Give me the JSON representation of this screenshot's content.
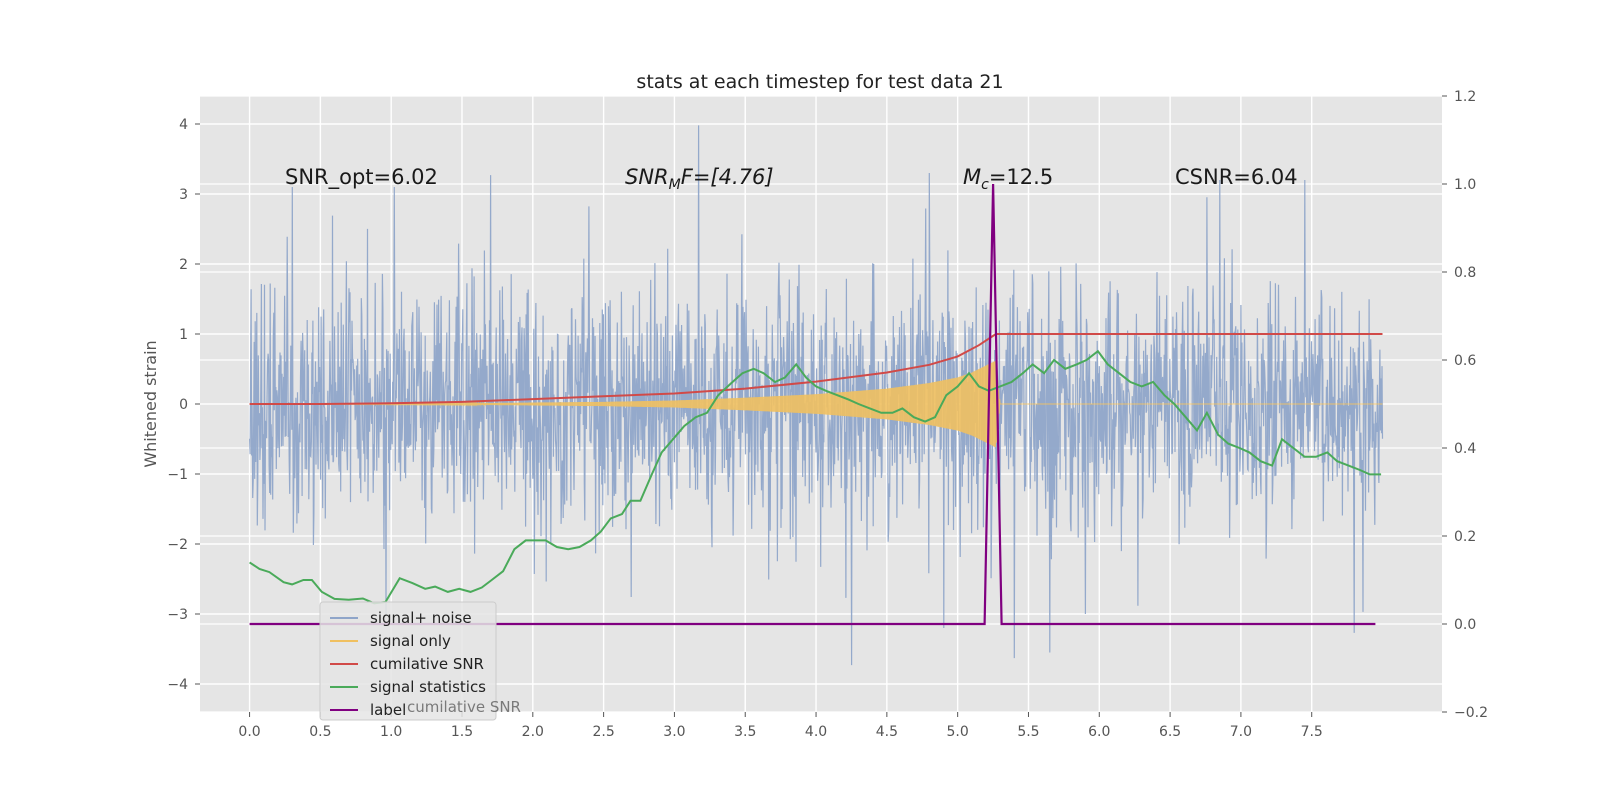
{
  "chart_data": {
    "type": "line",
    "title": "stats at each timestep for test data 21",
    "ylabel": "Whitened strain",
    "xlim": [
      -0.35,
      8.42
    ],
    "ylim_left": [
      -4.4,
      4.4
    ],
    "ylim_right": [
      -0.2,
      1.2
    ],
    "x_ticks": [
      0.0,
      0.5,
      1.0,
      1.5,
      2.0,
      2.5,
      3.0,
      3.5,
      4.0,
      4.5,
      5.0,
      5.5,
      6.0,
      6.5,
      7.0,
      7.5
    ],
    "x_tick_labels": [
      "0.0",
      "0.5",
      "1.0",
      "1.5",
      "2.0",
      "2.5",
      "3.0",
      "3.5",
      "4.0",
      "4.5",
      "5.0",
      "5.5",
      "6.0",
      "6.5",
      "7.0",
      "7.5"
    ],
    "y_left_ticks": [
      4,
      3,
      2,
      1,
      0,
      -1,
      -2,
      -3,
      -4
    ],
    "y_left_tick_labels": [
      "4",
      "3",
      "2",
      "1",
      "0",
      "−1",
      "−2",
      "−3",
      "−4"
    ],
    "y_right_ticks": [
      1.2,
      1.0,
      0.8,
      0.6,
      0.4,
      0.2,
      0.0,
      -0.2
    ],
    "y_right_tick_labels": [
      "1.2",
      "1.0",
      "0.8",
      "0.6",
      "0.4",
      "0.2",
      "0.0",
      "−0.2"
    ],
    "grid": true,
    "legend_placement": "lower-left",
    "annotations": [
      {
        "text": "SNR_opt=6.02",
        "x": 0.2,
        "y": 3.1
      },
      {
        "text": "SNR_MF=[4.76]",
        "x": 2.6,
        "y": 3.1
      },
      {
        "text": "M_c=12.5",
        "x": 5.0,
        "y": 3.1
      },
      {
        "text": "CSNR=6.04",
        "x": 6.5,
        "y": 3.1
      }
    ],
    "annotation_labels": {
      "snr_opt": "SNR_opt=6.02",
      "snr_mf_base": "SNR",
      "snr_mf_sub": "M",
      "snr_mf_rest": "F=[4.76]",
      "mc_base": "M",
      "mc_sub": "c",
      "mc_rest": "=12.5",
      "csnr": "CSNR=6.04"
    },
    "legend": [
      {
        "name": "signal+ noise",
        "color": "#8fa5c9"
      },
      {
        "name": "signal only",
        "color": "#f0c060"
      },
      {
        "name": "cumilative SNR",
        "color": "#d14a48"
      },
      {
        "name": "signal statistics",
        "color": "#4aaa5a"
      },
      {
        "name": "label",
        "color": "#800080"
      }
    ],
    "legend_hidden_text": "cumilative SNR",
    "series": [
      {
        "name": "signal+ noise",
        "axis": "left",
        "color": "#8fa5c9",
        "noise_envelope": {
          "x_start": 0.0,
          "x_end": 8.0,
          "typical_abs": 1.4,
          "max": 3.98,
          "min": -3.73
        },
        "spikes": [
          [
            0.3,
            3.1
          ],
          [
            1.02,
            3.1
          ],
          [
            1.7,
            3.27
          ],
          [
            3.17,
            3.98
          ],
          [
            4.25,
            -3.73
          ],
          [
            4.8,
            3.3
          ],
          [
            4.9,
            -3.2
          ],
          [
            5.4,
            -3.63
          ],
          [
            5.65,
            -3.55
          ],
          [
            6.85,
            3.2
          ],
          [
            7.45,
            3.2
          ],
          [
            7.8,
            -3.27
          ]
        ]
      },
      {
        "name": "signal only",
        "axis": "left",
        "color": "#f0c060",
        "envelope": {
          "x": [
            0.0,
            1.5,
            2.5,
            3.0,
            3.5,
            4.0,
            4.5,
            4.8,
            5.0,
            5.1,
            5.2,
            5.27,
            5.3,
            8.0
          ],
          "amp": [
            0.0,
            0.01,
            0.03,
            0.05,
            0.09,
            0.14,
            0.22,
            0.3,
            0.38,
            0.45,
            0.55,
            0.62,
            0.0,
            0.0
          ]
        }
      },
      {
        "name": "cumilative SNR",
        "axis": "left",
        "color": "#d14a48",
        "x": [
          0.0,
          0.5,
          1.0,
          1.5,
          2.0,
          2.5,
          3.0,
          3.5,
          4.0,
          4.5,
          4.8,
          5.0,
          5.15,
          5.27,
          5.5,
          6.0,
          7.0,
          8.0
        ],
        "y": [
          0.0,
          0.0,
          0.01,
          0.03,
          0.07,
          0.11,
          0.15,
          0.22,
          0.32,
          0.45,
          0.56,
          0.68,
          0.84,
          1.0,
          1.0,
          1.0,
          1.0,
          1.0
        ]
      },
      {
        "name": "signal statistics",
        "axis": "right",
        "color": "#4aaa5a",
        "x": [
          0.0,
          0.07,
          0.14,
          0.24,
          0.3,
          0.38,
          0.44,
          0.51,
          0.6,
          0.7,
          0.8,
          0.88,
          0.96,
          1.06,
          1.15,
          1.24,
          1.31,
          1.4,
          1.48,
          1.56,
          1.64,
          1.71,
          1.79,
          1.87,
          1.95,
          2.02,
          2.09,
          2.17,
          2.25,
          2.33,
          2.41,
          2.48,
          2.55,
          2.63,
          2.69,
          2.76,
          2.84,
          2.91,
          2.99,
          3.07,
          3.15,
          3.23,
          3.31,
          3.41,
          3.48,
          3.56,
          3.63,
          3.71,
          3.78,
          3.86,
          3.93,
          4.0,
          4.07,
          4.15,
          4.23,
          4.3,
          4.38,
          4.46,
          4.54,
          4.61,
          4.69,
          4.77,
          4.84,
          4.92,
          5.0,
          5.08,
          5.15,
          5.22,
          5.3,
          5.38,
          5.46,
          5.53,
          5.61,
          5.68,
          5.76,
          5.84,
          5.91,
          5.99,
          6.06,
          6.14,
          6.22,
          6.3,
          6.38,
          6.46,
          6.53,
          6.61,
          6.69,
          6.76,
          6.84,
          6.91,
          6.99,
          7.06,
          7.14,
          7.22,
          7.29,
          7.37,
          7.45,
          7.53,
          7.61,
          7.68,
          7.76,
          7.84,
          7.91,
          7.99
        ],
        "y": [
          0.14,
          0.125,
          0.118,
          0.095,
          0.09,
          0.1,
          0.1,
          0.073,
          0.057,
          0.055,
          0.058,
          0.047,
          0.05,
          0.104,
          0.093,
          0.08,
          0.085,
          0.073,
          0.08,
          0.073,
          0.083,
          0.1,
          0.12,
          0.17,
          0.19,
          0.19,
          0.19,
          0.175,
          0.17,
          0.175,
          0.19,
          0.21,
          0.24,
          0.25,
          0.28,
          0.28,
          0.34,
          0.39,
          0.42,
          0.45,
          0.47,
          0.48,
          0.52,
          0.55,
          0.57,
          0.58,
          0.57,
          0.55,
          0.56,
          0.59,
          0.56,
          0.54,
          0.53,
          0.52,
          0.51,
          0.5,
          0.49,
          0.48,
          0.48,
          0.49,
          0.47,
          0.46,
          0.47,
          0.52,
          0.54,
          0.57,
          0.54,
          0.53,
          0.54,
          0.55,
          0.57,
          0.59,
          0.57,
          0.6,
          0.58,
          0.59,
          0.6,
          0.62,
          0.59,
          0.57,
          0.55,
          0.54,
          0.55,
          0.52,
          0.5,
          0.47,
          0.44,
          0.48,
          0.43,
          0.41,
          0.4,
          0.39,
          0.37,
          0.36,
          0.42,
          0.4,
          0.38,
          0.38,
          0.39,
          0.37,
          0.36,
          0.35,
          0.34,
          0.34
        ]
      },
      {
        "name": "label",
        "axis": "right",
        "color": "#800080",
        "x": [
          0.0,
          5.19,
          5.25,
          5.31,
          7.95
        ],
        "y": [
          0.0,
          0.0,
          1.0,
          0.0,
          0.0
        ]
      }
    ]
  }
}
